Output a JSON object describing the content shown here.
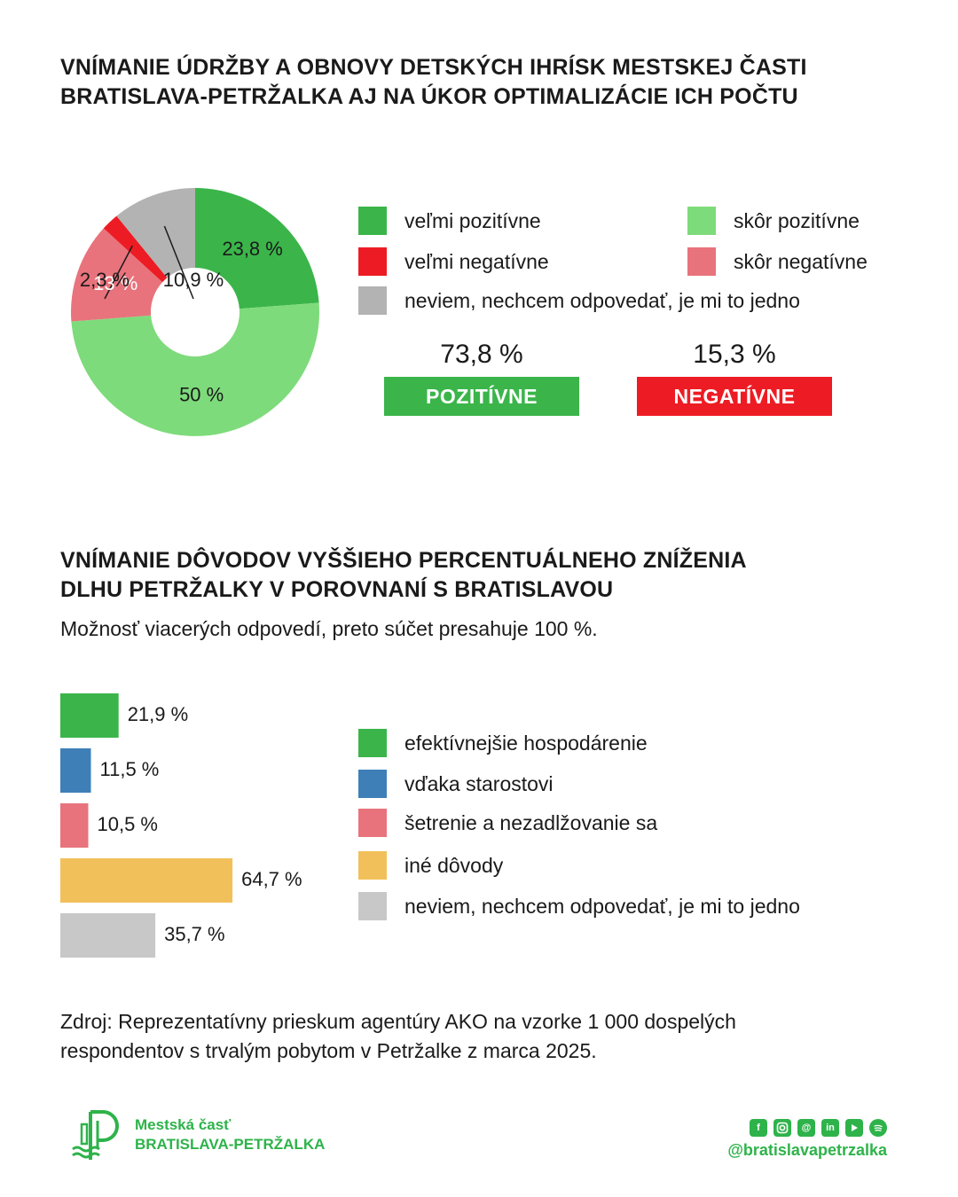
{
  "section1": {
    "title_lines": [
      "VNÍMANIE ÚDRŽBY A OBNOVY DETSKÝCH IHRÍSK MESTSKEJ ČASTI",
      "BRATISLAVA-PETRŽALKA AJ NA ÚKOR OPTIMALIZÁCIE ICH POČTU"
    ],
    "totals": {
      "positive_value": "73,8 %",
      "positive_label": "POZITÍVNE",
      "negative_value": "15,3 %",
      "negative_label": "NEGATÍVNE"
    }
  },
  "section2": {
    "title_lines": [
      "VNÍMANIE DÔVODOV VYŠŠIEHO PERCENTUÁLNEHO ZNÍŽENIA",
      "DLHU PETRŽALKY V POROVNANÍ S BRATISLAVOU"
    ],
    "subtitle": "Možnosť viacerých odpovedí, preto súčet presahuje 100 %."
  },
  "chart_data": [
    {
      "type": "pie",
      "donut": true,
      "categories": [
        "veľmi pozitívne",
        "skôr pozitívne",
        "skôr negatívne",
        "veľmi negatívne",
        "neviem, nechcem odpovedať, je mi to jedno"
      ],
      "values": [
        23.8,
        50,
        13,
        2.3,
        10.9
      ],
      "labels": [
        "23,8 %",
        "50 %",
        "13 %",
        "2,3 %",
        "10,9 %"
      ],
      "colors": [
        "#3bb54a",
        "#7edb7b",
        "#e8737c",
        "#ed1c24",
        "#b3b3b3"
      ],
      "legend": [
        {
          "label": "veľmi pozitívne",
          "color": "#3bb54a"
        },
        {
          "label": "skôr pozitívne",
          "color": "#7edb7b"
        },
        {
          "label": "veľmi negatívne",
          "color": "#ed1c24"
        },
        {
          "label": "skôr negatívne",
          "color": "#e8737c"
        },
        {
          "label": "neviem, nechcem odpovedať, je mi to jedno",
          "color": "#b3b3b3"
        }
      ]
    },
    {
      "type": "bar",
      "orientation": "horizontal",
      "categories": [
        "efektívnejšie hospodárenie",
        "vďaka starostovi",
        "šetrenie a nezadlžovanie sa",
        "iné dôvody",
        "neviem, nechcem odpovedať, je mi to jedno"
      ],
      "values": [
        21.9,
        11.5,
        10.5,
        64.7,
        35.7
      ],
      "labels": [
        "21,9 %",
        "11,5 %",
        "10,5 %",
        "64,7 %",
        "35,7 %"
      ],
      "colors": [
        "#3bb54a",
        "#3f7fb8",
        "#e8737c",
        "#f2c05a",
        "#c8c8c8"
      ]
    }
  ],
  "source_lines": [
    "Zdroj: Reprezentatívny prieskum agentúry AKO na vzorke 1 000 dospelých",
    "respondentov s trvalým pobytom v Petržalke z marca 2025."
  ],
  "logo": {
    "line1": "Mestská časť",
    "line2": "BRATISLAVA-PETRŽALKA"
  },
  "social": {
    "icons": [
      "facebook-icon",
      "instagram-icon",
      "threads-icon",
      "linkedin-icon",
      "youtube-icon",
      "spotify-icon"
    ],
    "handle": "@bratislavapetrzalka"
  },
  "brand_color": "#2eb34a"
}
